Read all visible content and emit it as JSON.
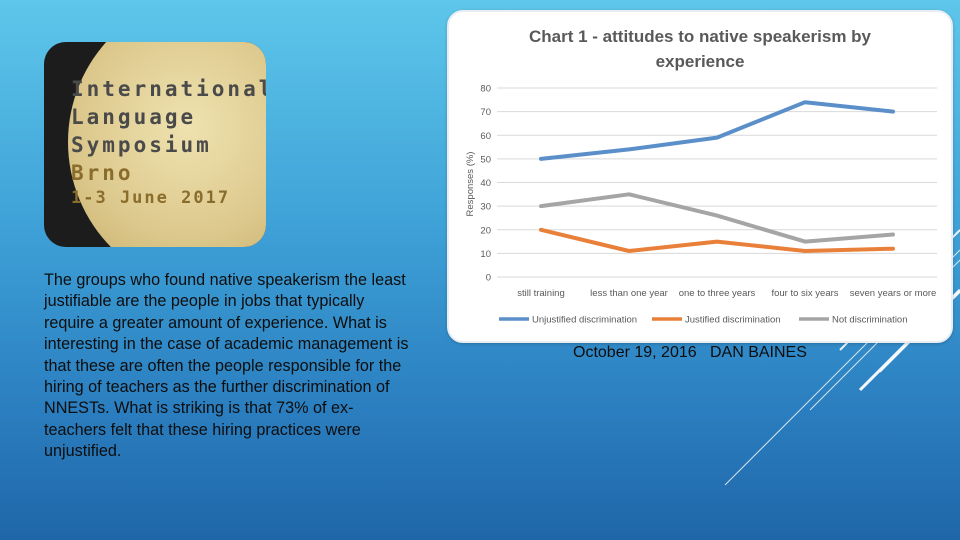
{
  "logo": {
    "lines": [
      "International",
      "Language",
      "Symposium"
    ],
    "city": "Brno",
    "dates": "1-3 June 2017"
  },
  "body_text": "The groups who found native speakerism the least justifiable are the people in jobs that typically require a greater amount of experience. What is interesting in the case of academic management is that these are often the people responsible for the hiring of teachers as  the further discrimination of NNESTs. What is striking is that 73% of ex-teachers felt that these hiring practices were unjustified.",
  "footer": {
    "date": "October 19, 2016",
    "author": "DAN BAINES"
  },
  "colors": {
    "unjustified": "#5b8fc9",
    "justified": "#e9803a",
    "not": "#a5a5a5"
  },
  "chart_data": {
    "type": "line",
    "title_line1": "Chart 1 - attitudes to native speakerism by",
    "title_line2": "experience",
    "ylabel": "Responses (%)",
    "xlabel": "",
    "ylim": [
      0,
      80
    ],
    "yticks": [
      0,
      10,
      20,
      30,
      40,
      50,
      60,
      70,
      80
    ],
    "grid": true,
    "legend_position": "bottom",
    "categories": [
      "still training",
      "less than one year",
      "one to three years",
      "four to six years",
      "seven years or more"
    ],
    "series": [
      {
        "name": "Unjustified discrimination",
        "color": "#5b8fc9",
        "values": [
          50,
          54,
          59,
          74,
          70
        ]
      },
      {
        "name": "Justified discrimination",
        "color": "#e9803a",
        "values": [
          20,
          11,
          15,
          11,
          12
        ]
      },
      {
        "name": "Not discrimination",
        "color": "#a5a5a5",
        "values": [
          30,
          35,
          26,
          15,
          18
        ]
      }
    ]
  }
}
